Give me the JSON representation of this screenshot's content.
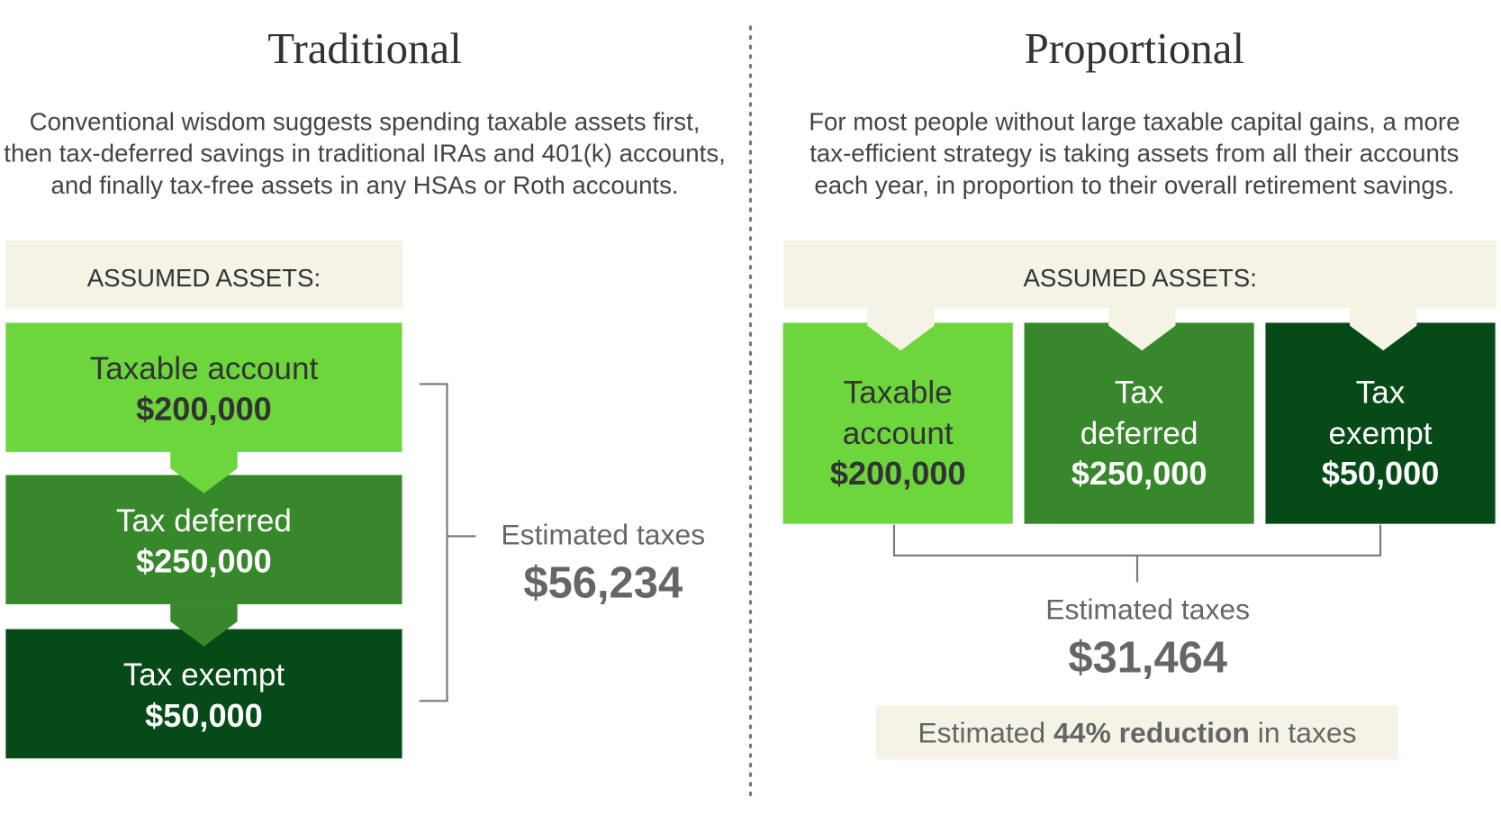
{
  "left": {
    "title": "Traditional",
    "description": [
      "Conventional wisdom suggests spending taxable assets first,",
      "then tax-deferred savings in traditional IRAs and 401(k) accounts,",
      "and finally tax-free assets in any HSAs or Roth accounts."
    ],
    "assets_label": "ASSUMED ASSETS:",
    "accounts": [
      {
        "name": "Taxable account",
        "amount": "$200,000"
      },
      {
        "name": "Tax deferred",
        "amount": "$250,000"
      },
      {
        "name": "Tax exempt",
        "amount": "$50,000"
      }
    ],
    "estimate_label": "Estimated taxes",
    "estimate_value": "$56,234"
  },
  "right": {
    "title": "Proportional",
    "description": [
      "For most people without large taxable capital gains, a more",
      "tax-efficient strategy is taking assets from all their accounts",
      "each year, in proportion to their overall retirement savings."
    ],
    "assets_label": "ASSUMED ASSETS:",
    "accounts": [
      {
        "name": [
          "Taxable",
          "account"
        ],
        "amount": "$200,000"
      },
      {
        "name": [
          "Tax",
          "deferred"
        ],
        "amount": "$250,000"
      },
      {
        "name": [
          "Tax",
          "exempt"
        ],
        "amount": "$50,000"
      }
    ],
    "estimate_label": "Estimated taxes",
    "estimate_value": "$31,464",
    "reduction": {
      "prefix": "Estimated",
      "emphasis": "44% reduction",
      "suffix": "in taxes"
    }
  }
}
